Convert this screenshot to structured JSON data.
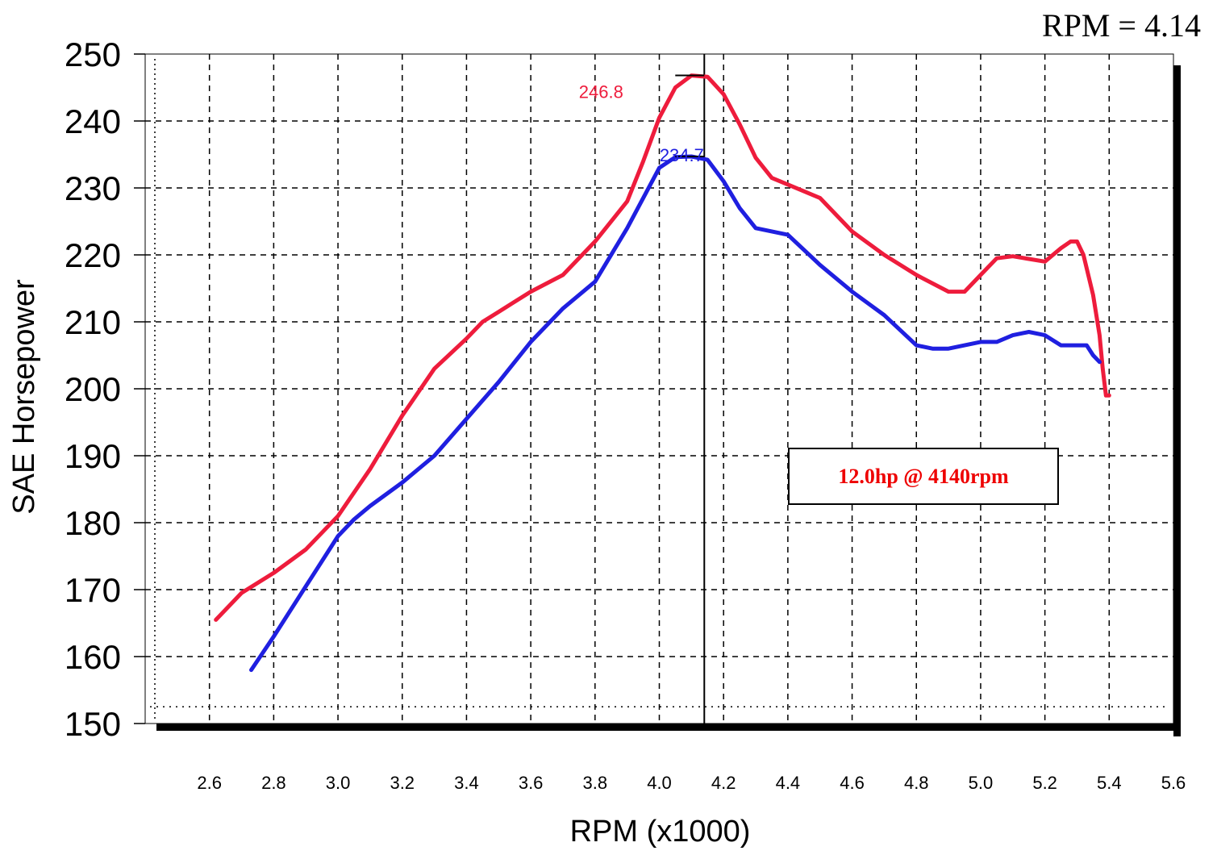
{
  "readout": {
    "text": "RPM = 4.14"
  },
  "annotation": {
    "text": "12.0hp @ 4140rpm",
    "color": "#ee0000"
  },
  "colors": {
    "run_a": "#ee1c3c",
    "run_b": "#1f1fe0",
    "grid": "#000000"
  },
  "chart_data": {
    "type": "line",
    "xlabel": "RPM (x1000)",
    "ylabel": "SAE Horsepower",
    "xlim": [
      2.4,
      5.6
    ],
    "ylim": [
      150,
      250
    ],
    "xticks": [
      "2.6",
      "2.8",
      "3.0",
      "3.2",
      "3.4",
      "3.6",
      "3.8",
      "4.0",
      "4.2",
      "4.4",
      "4.6",
      "4.8",
      "5.0",
      "5.2",
      "5.4",
      "5.6"
    ],
    "yticks": [
      "150",
      "160",
      "170",
      "180",
      "190",
      "200",
      "210",
      "220",
      "230",
      "240",
      "250"
    ],
    "grid": true,
    "cursor_x": 4.14,
    "series": [
      {
        "color": "#ee1c3c",
        "peak_label": "246.8",
        "peak": [
          4.12,
          246.8
        ],
        "x": [
          2.62,
          2.7,
          2.8,
          2.9,
          3.0,
          3.1,
          3.2,
          3.3,
          3.4,
          3.45,
          3.5,
          3.6,
          3.7,
          3.8,
          3.9,
          3.95,
          4.0,
          4.05,
          4.1,
          4.15,
          4.2,
          4.25,
          4.3,
          4.35,
          4.4,
          4.5,
          4.6,
          4.7,
          4.8,
          4.9,
          4.95,
          5.0,
          5.05,
          5.1,
          5.15,
          5.2,
          5.25,
          5.28,
          5.3,
          5.32,
          5.35,
          5.37,
          5.38,
          5.39,
          5.4
        ],
        "y": [
          165.5,
          169.5,
          172.5,
          176,
          181,
          188,
          196,
          203,
          207.5,
          210,
          211.5,
          214.5,
          217,
          222,
          228,
          234,
          240.5,
          245,
          246.8,
          246.6,
          244,
          239.5,
          234.5,
          231.5,
          230.5,
          228.5,
          223.5,
          220,
          217,
          214.5,
          214.5,
          217,
          219.5,
          219.8,
          219.4,
          219,
          221,
          222,
          222,
          220,
          214,
          208,
          203,
          199,
          199
        ]
      },
      {
        "color": "#1f1fe0",
        "peak_label": "234.7",
        "peak": [
          4.1,
          234.7
        ],
        "x": [
          2.73,
          2.8,
          2.9,
          3.0,
          3.05,
          3.1,
          3.2,
          3.3,
          3.4,
          3.5,
          3.6,
          3.7,
          3.8,
          3.9,
          3.95,
          4.0,
          4.05,
          4.1,
          4.15,
          4.2,
          4.25,
          4.3,
          4.4,
          4.5,
          4.6,
          4.7,
          4.8,
          4.85,
          4.9,
          4.95,
          5.0,
          5.05,
          5.1,
          5.15,
          5.2,
          5.25,
          5.3,
          5.33,
          5.35,
          5.37
        ],
        "y": [
          158,
          163,
          170.5,
          178,
          180.5,
          182.5,
          186,
          190,
          195.5,
          201,
          207,
          212,
          216,
          224,
          228.5,
          233,
          234.6,
          234.7,
          234.2,
          231,
          227,
          224,
          223,
          218.5,
          214.5,
          211,
          206.5,
          206,
          206,
          206.5,
          207,
          207,
          208,
          208.5,
          208,
          206.5,
          206.5,
          206.5,
          205,
          204
        ]
      }
    ]
  }
}
